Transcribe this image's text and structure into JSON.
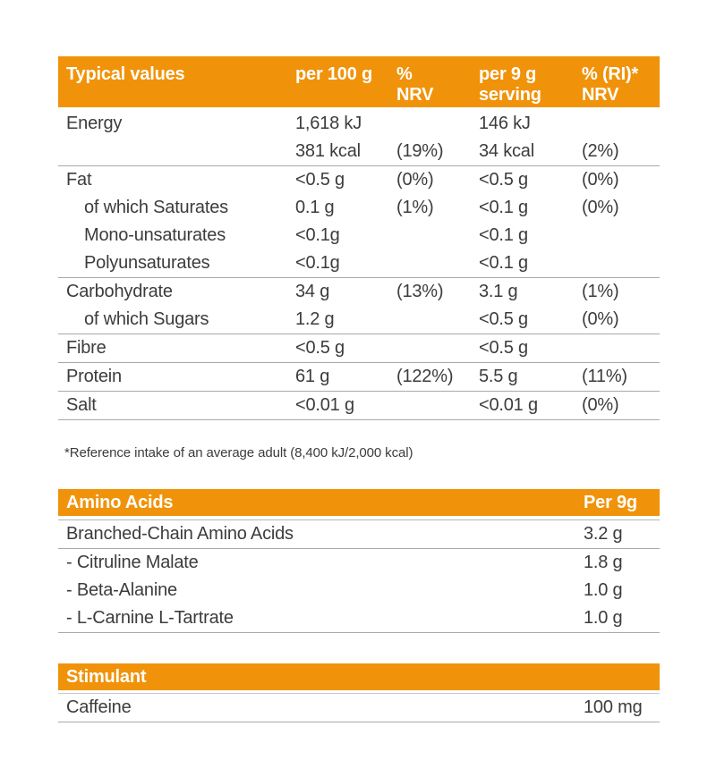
{
  "colors": {
    "accent_orange": "#F0930A",
    "text": "#3C3C3B",
    "header_text": "#FFFFFF",
    "divider": "#A9A9A8"
  },
  "nutrition_table": {
    "title": "Typical values",
    "columns": {
      "per100": {
        "line1": "per 100 g",
        "line2": ""
      },
      "nrv": {
        "line1": "%",
        "line2": "NRV"
      },
      "per9": {
        "line1": "per 9 g",
        "line2": "serving"
      },
      "ri": {
        "line1": "% (RI)*",
        "line2": "NRV"
      }
    },
    "rows": [
      {
        "label": "Energy",
        "per100": "1,618 kJ",
        "nrv": "",
        "per9": "146 kJ",
        "ri": ""
      },
      {
        "label": "",
        "per100": "381 kcal",
        "nrv": "(19%)",
        "per9": "34 kcal",
        "ri": "(2%)"
      },
      {
        "label": "Fat",
        "per100": "<0.5 g",
        "nrv": "(0%)",
        "per9": "<0.5 g",
        "ri": "(0%)"
      },
      {
        "label": "of which Saturates",
        "per100": "0.1 g",
        "nrv": "(1%)",
        "per9": "<0.1 g",
        "ri": "(0%)"
      },
      {
        "label": "Mono-unsaturates",
        "per100": "<0.1g",
        "nrv": "",
        "per9": "<0.1 g",
        "ri": ""
      },
      {
        "label": "Polyunsaturates",
        "per100": "<0.1g",
        "nrv": "",
        "per9": "<0.1 g",
        "ri": ""
      },
      {
        "label": "Carbohydrate",
        "per100": "34 g",
        "nrv": "(13%)",
        "per9": "3.1 g",
        "ri": "(1%)"
      },
      {
        "label": "of which Sugars",
        "per100": "1.2 g",
        "nrv": "",
        "per9": "<0.5 g",
        "ri": "(0%)"
      },
      {
        "label": "Fibre",
        "per100": "<0.5 g",
        "nrv": "",
        "per9": "<0.5 g",
        "ri": ""
      },
      {
        "label": "Protein",
        "per100": "61 g",
        "nrv": "(122%)",
        "per9": "5.5 g",
        "ri": "(11%)"
      },
      {
        "label": "Salt",
        "per100": "<0.01 g",
        "nrv": "",
        "per9": "<0.01 g",
        "ri": "(0%)"
      }
    ]
  },
  "footnote": "*Reference intake of an average adult (8,400 kJ/2,000 kcal)",
  "amino_acids_table": {
    "title": "Amino Acids",
    "column": "Per 9g",
    "rows": [
      {
        "label": "Branched-Chain Amino Acids",
        "value": "3.2 g"
      },
      {
        "label": "- Citruline Malate",
        "value": "1.8 g"
      },
      {
        "label": "- Beta-Alanine",
        "value": "1.0 g"
      },
      {
        "label": "- L-Carnine L-Tartrate",
        "value": "1.0 g"
      }
    ]
  },
  "stimulant_table": {
    "title": "Stimulant",
    "rows": [
      {
        "label": "Caffeine",
        "value": "100 mg"
      }
    ]
  }
}
